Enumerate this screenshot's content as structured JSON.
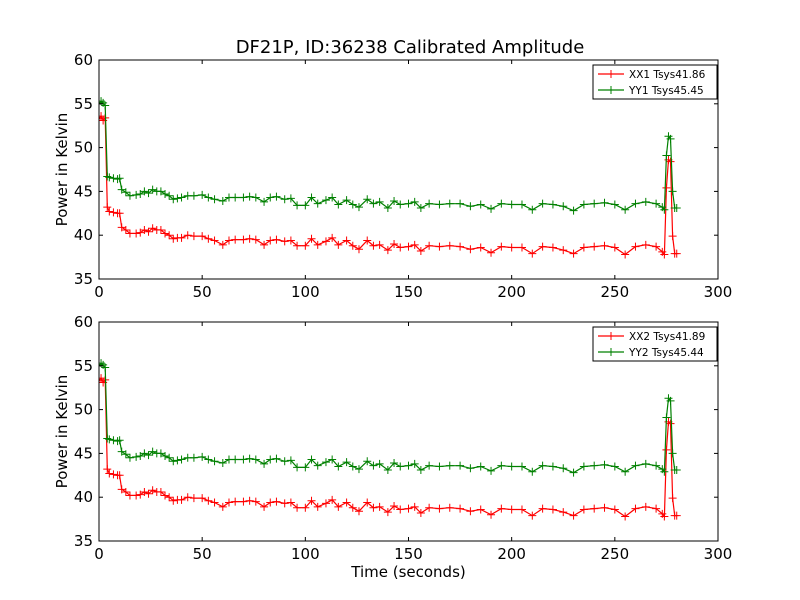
{
  "figure": {
    "title": "DF21P, ID:36238 Calibrated Amplitude"
  },
  "chart_data": [
    {
      "type": "line",
      "title": "DF21P, ID:36238 Calibrated Amplitude",
      "xlabel": "",
      "ylabel": "Power in Kelvin",
      "xlim": [
        0,
        300
      ],
      "ylim": [
        35,
        60
      ],
      "x_ticks": [
        0,
        50,
        100,
        150,
        200,
        250,
        300
      ],
      "y_ticks": [
        35,
        40,
        45,
        50,
        55,
        60
      ],
      "grid": false,
      "legend_position": "top-right",
      "x": [
        0,
        1,
        2,
        3,
        4,
        5,
        7,
        9,
        10,
        11,
        13,
        15,
        18,
        20,
        22,
        24,
        26,
        28,
        30,
        32,
        34,
        36,
        38,
        40,
        43,
        46,
        50,
        53,
        56,
        60,
        63,
        66,
        70,
        73,
        76,
        80,
        83,
        86,
        90,
        93,
        96,
        100,
        103,
        106,
        110,
        113,
        116,
        120,
        123,
        126,
        130,
        133,
        136,
        140,
        143,
        146,
        150,
        153,
        156,
        160,
        165,
        170,
        175,
        180,
        185,
        190,
        195,
        200,
        205,
        210,
        215,
        220,
        225,
        230,
        235,
        240,
        245,
        250,
        255,
        260,
        265,
        270,
        273,
        274,
        275,
        276,
        277,
        278,
        279,
        280
      ],
      "series": [
        {
          "name": "XX1 Tsys41.86",
          "color": "#ff0000",
          "marker": "+",
          "values": [
            53.3,
            53.6,
            53.1,
            53.4,
            43.2,
            42.7,
            42.6,
            42.5,
            42.5,
            40.9,
            40.6,
            40.2,
            40.2,
            40.3,
            40.6,
            40.4,
            40.8,
            40.6,
            40.6,
            40.2,
            40.0,
            39.6,
            39.7,
            39.7,
            40.0,
            39.9,
            39.9,
            39.6,
            39.4,
            38.9,
            39.4,
            39.5,
            39.5,
            39.6,
            39.5,
            38.9,
            39.4,
            39.5,
            39.3,
            39.4,
            38.8,
            38.8,
            39.6,
            38.9,
            39.3,
            39.7,
            38.9,
            39.4,
            38.8,
            38.4,
            39.4,
            38.8,
            38.9,
            38.3,
            39.0,
            38.6,
            38.7,
            38.9,
            38.2,
            38.8,
            38.7,
            38.8,
            38.7,
            38.4,
            38.6,
            38.0,
            38.7,
            38.6,
            38.6,
            37.9,
            38.7,
            38.6,
            38.3,
            37.9,
            38.6,
            38.7,
            38.8,
            38.6,
            37.8,
            38.7,
            38.9,
            38.7,
            38.1,
            37.8,
            45.4,
            48.6,
            48.4,
            39.9,
            37.9,
            37.9
          ]
        },
        {
          "name": "YY1 Tsys45.45",
          "color": "#008000",
          "marker": "+",
          "values": [
            55.0,
            55.3,
            55.1,
            54.8,
            46.7,
            46.6,
            46.5,
            46.4,
            46.5,
            45.2,
            44.9,
            44.5,
            44.6,
            44.7,
            45.0,
            44.8,
            45.2,
            45.0,
            45.0,
            44.7,
            44.5,
            44.1,
            44.2,
            44.3,
            44.5,
            44.5,
            44.6,
            44.3,
            44.1,
            43.9,
            44.3,
            44.3,
            44.3,
            44.4,
            44.3,
            43.8,
            44.3,
            44.4,
            44.1,
            44.2,
            43.4,
            43.4,
            44.3,
            43.6,
            44.0,
            44.3,
            43.5,
            44.0,
            43.5,
            43.2,
            44.1,
            43.6,
            43.8,
            43.1,
            43.9,
            43.5,
            43.6,
            43.8,
            43.1,
            43.6,
            43.5,
            43.6,
            43.6,
            43.3,
            43.5,
            43.0,
            43.6,
            43.5,
            43.5,
            42.9,
            43.6,
            43.5,
            43.3,
            42.8,
            43.5,
            43.6,
            43.7,
            43.5,
            42.9,
            43.6,
            43.8,
            43.6,
            43.2,
            42.9,
            49.1,
            51.3,
            51.0,
            45.0,
            43.1,
            43.1
          ]
        }
      ]
    },
    {
      "type": "line",
      "title": "",
      "xlabel": "Time (seconds)",
      "ylabel": "Power in Kelvin",
      "xlim": [
        0,
        300
      ],
      "ylim": [
        35,
        60
      ],
      "x_ticks": [
        0,
        50,
        100,
        150,
        200,
        250,
        300
      ],
      "y_ticks": [
        35,
        40,
        45,
        50,
        55,
        60
      ],
      "grid": false,
      "legend_position": "top-right",
      "x": [
        0,
        1,
        2,
        3,
        4,
        5,
        7,
        9,
        10,
        11,
        13,
        15,
        18,
        20,
        22,
        24,
        26,
        28,
        30,
        32,
        34,
        36,
        38,
        40,
        43,
        46,
        50,
        53,
        56,
        60,
        63,
        66,
        70,
        73,
        76,
        80,
        83,
        86,
        90,
        93,
        96,
        100,
        103,
        106,
        110,
        113,
        116,
        120,
        123,
        126,
        130,
        133,
        136,
        140,
        143,
        146,
        150,
        153,
        156,
        160,
        165,
        170,
        175,
        180,
        185,
        190,
        195,
        200,
        205,
        210,
        215,
        220,
        225,
        230,
        235,
        240,
        245,
        250,
        255,
        260,
        265,
        270,
        273,
        274,
        275,
        276,
        277,
        278,
        279,
        280
      ],
      "series": [
        {
          "name": "XX2 Tsys41.89",
          "color": "#ff0000",
          "marker": "+",
          "values": [
            53.3,
            53.6,
            53.1,
            53.4,
            43.2,
            42.7,
            42.6,
            42.5,
            42.5,
            40.9,
            40.6,
            40.2,
            40.2,
            40.3,
            40.6,
            40.4,
            40.8,
            40.6,
            40.6,
            40.2,
            40.0,
            39.6,
            39.7,
            39.7,
            40.0,
            39.9,
            39.9,
            39.6,
            39.4,
            38.9,
            39.4,
            39.5,
            39.5,
            39.6,
            39.5,
            38.9,
            39.4,
            39.5,
            39.3,
            39.4,
            38.8,
            38.8,
            39.6,
            38.9,
            39.3,
            39.7,
            38.9,
            39.4,
            38.8,
            38.4,
            39.4,
            38.8,
            38.9,
            38.3,
            39.0,
            38.6,
            38.7,
            38.9,
            38.2,
            38.8,
            38.7,
            38.8,
            38.7,
            38.4,
            38.6,
            38.0,
            38.7,
            38.6,
            38.6,
            37.9,
            38.7,
            38.6,
            38.3,
            37.9,
            38.6,
            38.7,
            38.8,
            38.6,
            37.8,
            38.7,
            38.9,
            38.7,
            38.1,
            37.8,
            45.4,
            48.6,
            48.4,
            39.9,
            37.9,
            37.9
          ]
        },
        {
          "name": "YY2 Tsys45.44",
          "color": "#008000",
          "marker": "+",
          "values": [
            55.0,
            55.3,
            55.1,
            54.8,
            46.7,
            46.6,
            46.5,
            46.4,
            46.5,
            45.2,
            44.9,
            44.5,
            44.6,
            44.7,
            45.0,
            44.8,
            45.2,
            45.0,
            45.0,
            44.7,
            44.5,
            44.1,
            44.2,
            44.3,
            44.5,
            44.5,
            44.6,
            44.3,
            44.1,
            43.9,
            44.3,
            44.3,
            44.3,
            44.4,
            44.3,
            43.8,
            44.3,
            44.4,
            44.1,
            44.2,
            43.4,
            43.4,
            44.3,
            43.6,
            44.0,
            44.3,
            43.5,
            44.0,
            43.5,
            43.2,
            44.1,
            43.6,
            43.8,
            43.1,
            43.9,
            43.5,
            43.6,
            43.8,
            43.1,
            43.6,
            43.5,
            43.6,
            43.6,
            43.3,
            43.5,
            43.0,
            43.6,
            43.5,
            43.5,
            42.9,
            43.6,
            43.5,
            43.3,
            42.8,
            43.5,
            43.6,
            43.7,
            43.5,
            42.9,
            43.6,
            43.8,
            43.6,
            43.2,
            42.9,
            49.1,
            51.3,
            51.0,
            45.0,
            43.1,
            43.1
          ]
        }
      ]
    }
  ]
}
